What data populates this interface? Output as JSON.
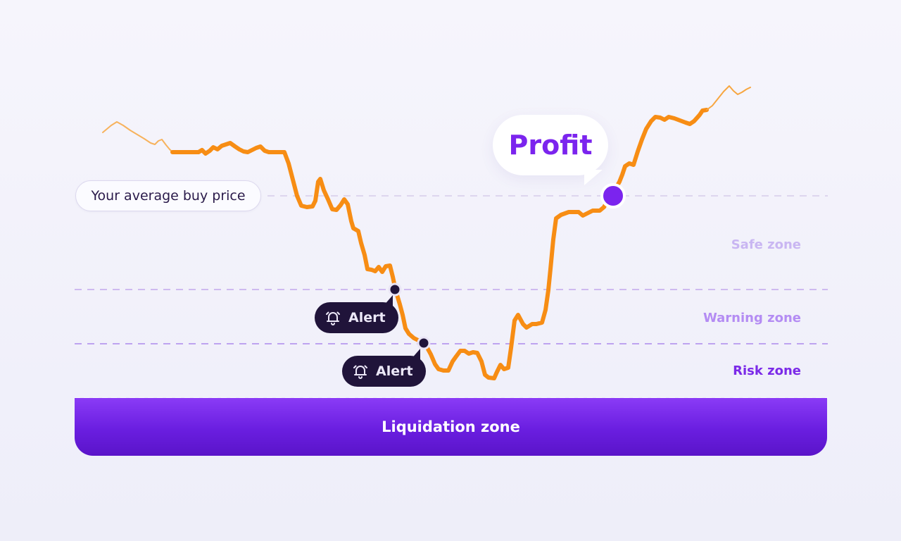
{
  "labels": {
    "avg_buy_price": "Your average buy price",
    "profit": "Profit",
    "alert": "Alert",
    "liquidation_zone": "Liquidation zone"
  },
  "zones": [
    {
      "name": "Safe zone",
      "color": "#c9b6f2"
    },
    {
      "name": "Warning zone",
      "color": "#b48cf3"
    },
    {
      "name": "Risk zone",
      "color": "#7b2ae8"
    }
  ],
  "colors": {
    "price_line": "#f78d14",
    "profit_text": "#7b24ee",
    "profit_marker": "#7b24ee",
    "alert_bg": "#20143a",
    "alert_marker": "#20143a",
    "liquidation": "#6a1ee0",
    "avg_line": "#d6cde9",
    "warning_line": "#c9b3ee",
    "risk_line": "#b698ee"
  },
  "icons": {
    "alert": "bell-icon"
  }
}
